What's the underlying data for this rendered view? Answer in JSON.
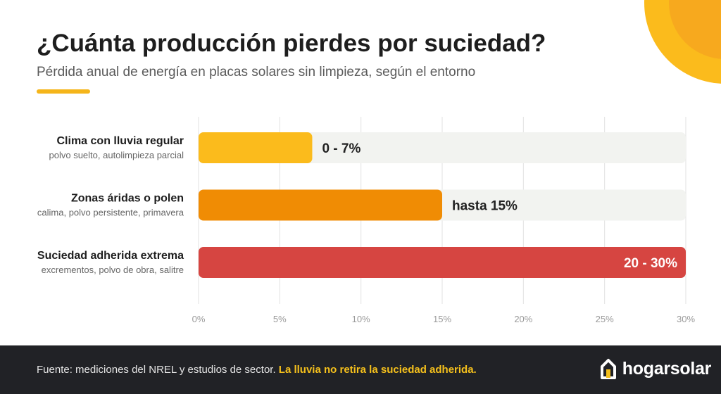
{
  "header": {
    "title": "¿Cuánta producción pierdes por suciedad?",
    "subtitle": "Pérdida anual de energía en placas solares sin limpieza, según el entorno"
  },
  "colors": {
    "accent": "#f5b51a",
    "track": "#f2f3f0",
    "footer_bg": "#212226",
    "footer_highlight": "#f5c01c"
  },
  "chart_data": {
    "type": "bar",
    "orientation": "horizontal",
    "xlim": [
      0,
      30
    ],
    "x_ticks": [
      "0%",
      "5%",
      "10%",
      "15%",
      "20%",
      "25%",
      "30%"
    ],
    "grid": true,
    "categories": [
      {
        "label": "Clima con lluvia regular",
        "sublabel": "polvo suelto, autolimpieza parcial",
        "range": [
          0,
          7
        ],
        "value_label": "0 - 7%",
        "color": "#fbbb1c"
      },
      {
        "label": "Zonas áridas o polen",
        "sublabel": "calima, polvo persistente, primavera",
        "range": [
          0,
          15
        ],
        "value_label": "hasta 15%",
        "color": "#f08c04"
      },
      {
        "label": "Suciedad adherida extrema",
        "sublabel": "excrementos, polvo de obra, salitre",
        "range": [
          20,
          30
        ],
        "value_label": "20 - 30%",
        "color": "#d64541"
      }
    ]
  },
  "footer": {
    "source_text": "Fuente: mediciones del NREL y estudios de sector.",
    "highlight_text": "La lluvia no retira la suciedad adherida.",
    "logo_text": "hogarsolar",
    "logo_icon": "house-icon"
  }
}
